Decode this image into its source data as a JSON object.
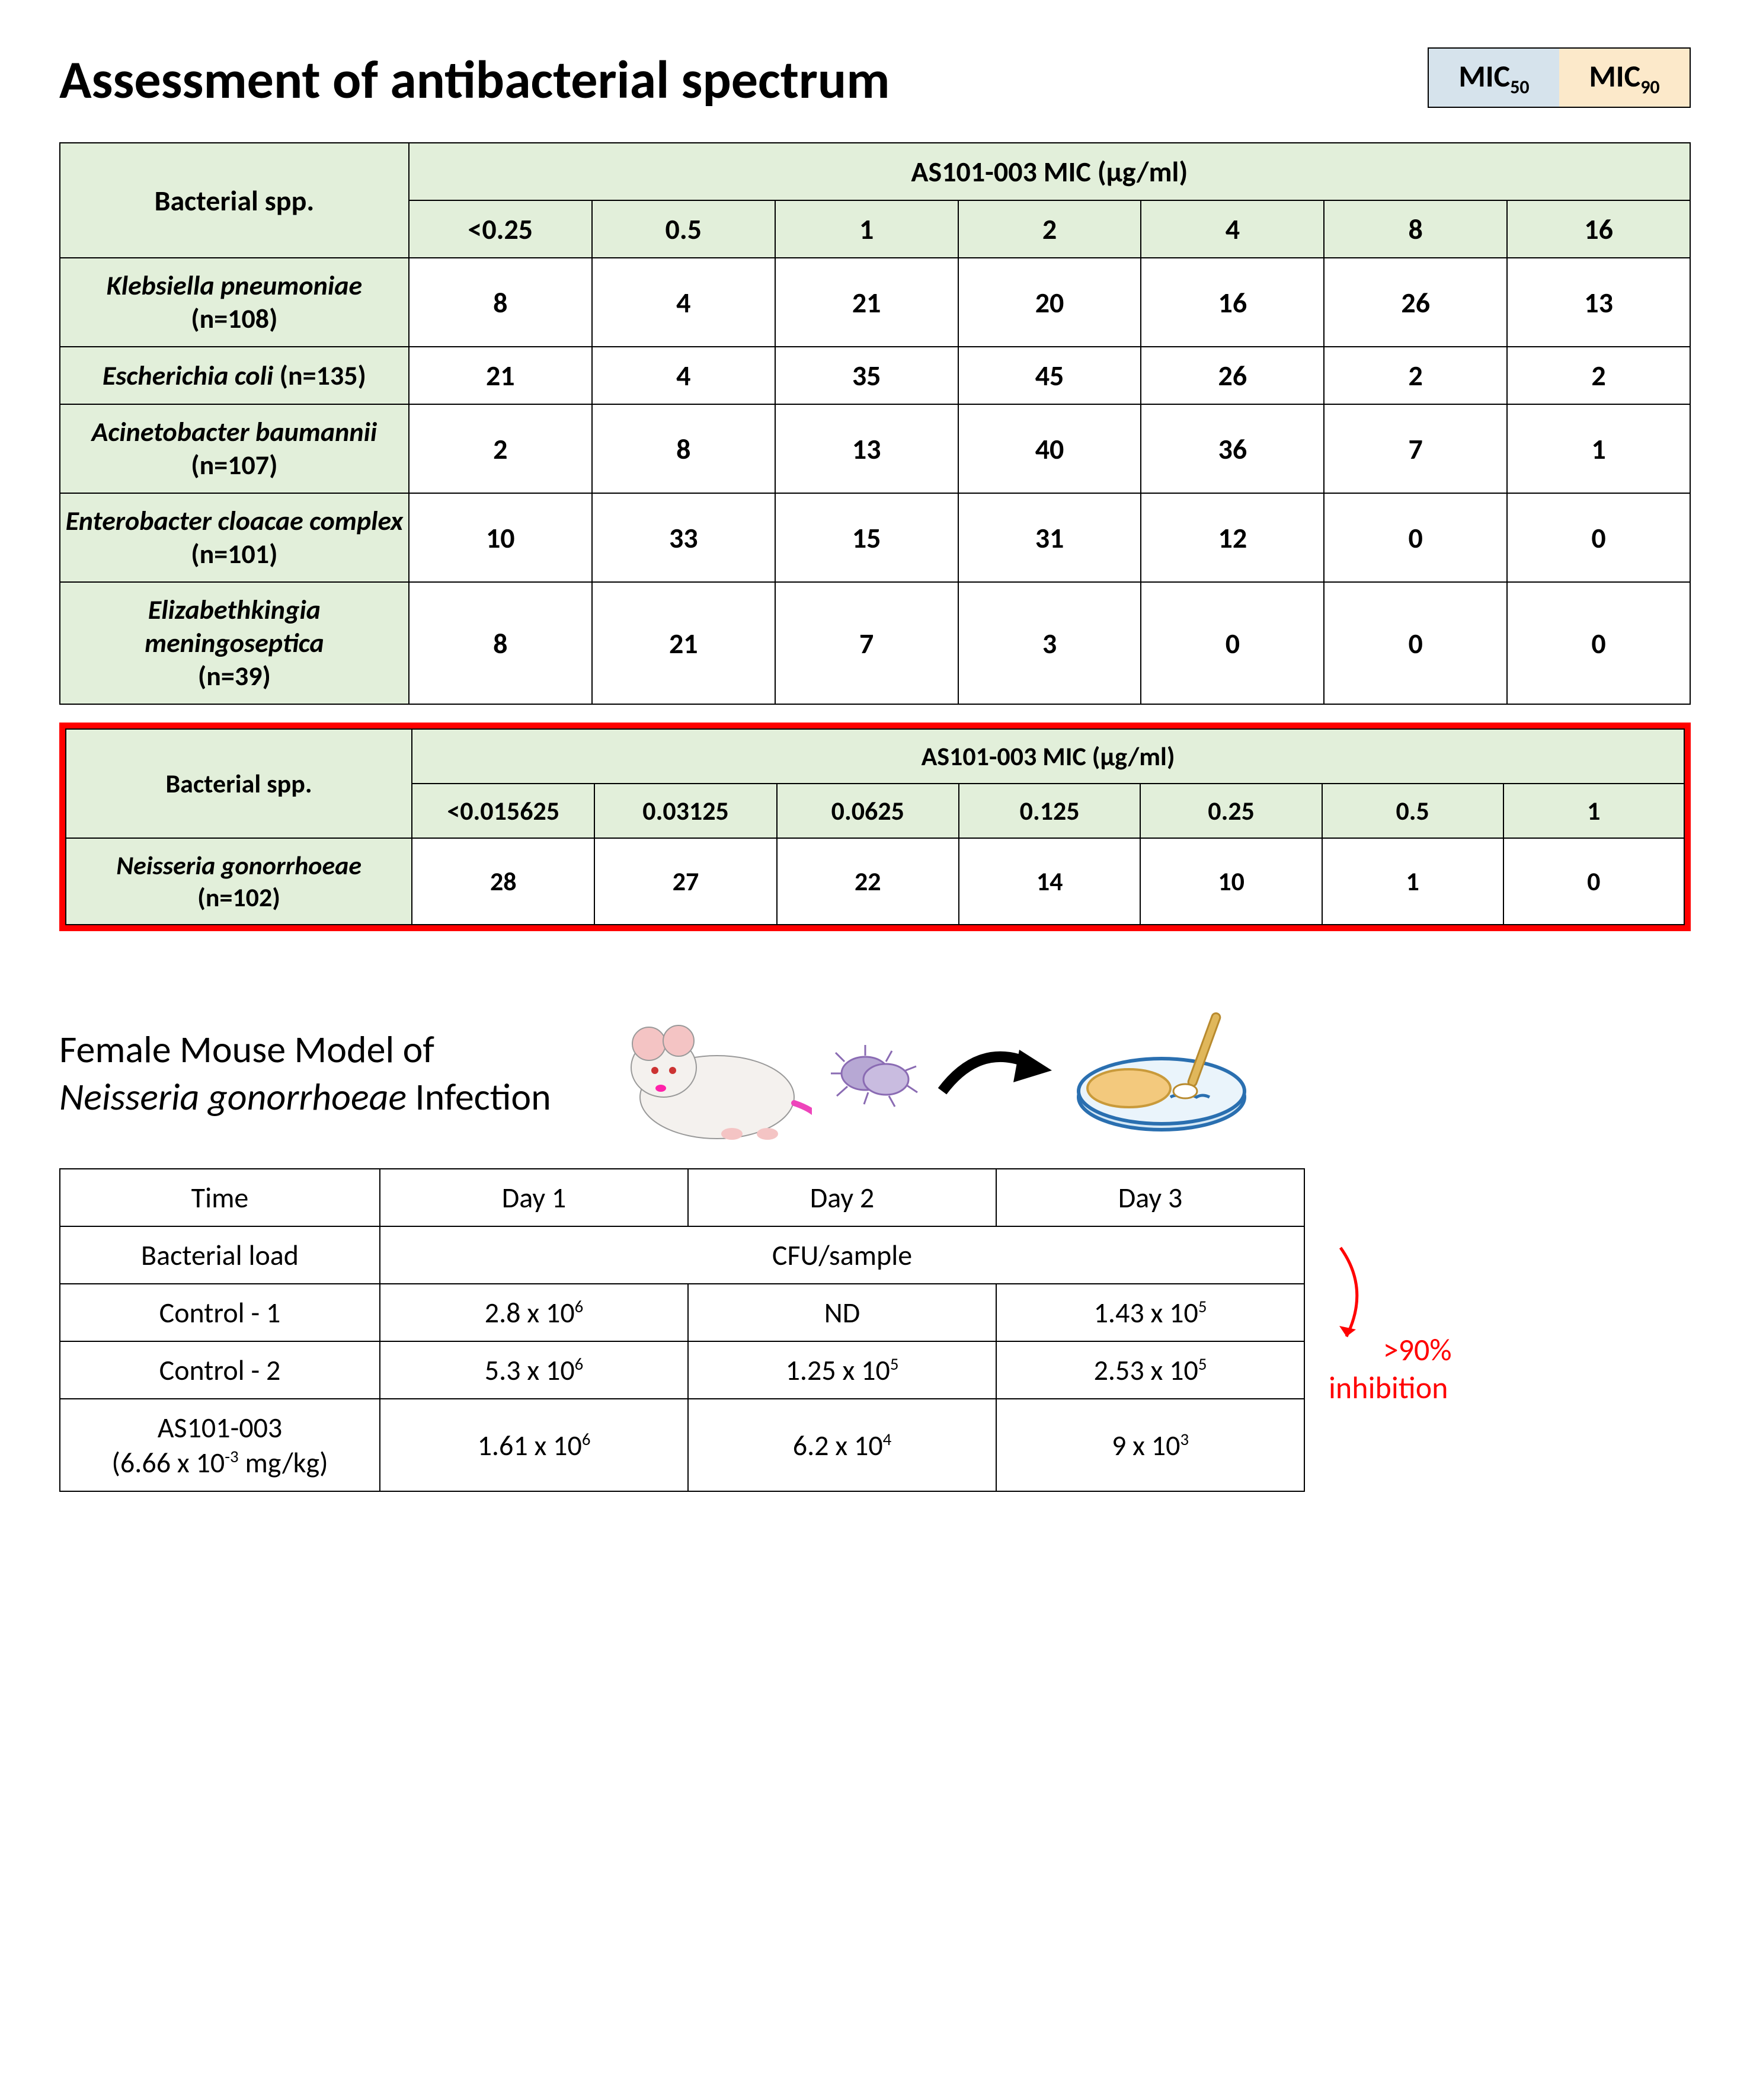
{
  "title": "Assessment of antibacterial spectrum",
  "legend": {
    "mic50": "MIC",
    "mic50_sub": "50",
    "mic90": "MIC",
    "mic90_sub": "90"
  },
  "colors": {
    "header_bg": "#e2efda",
    "mic50_bg": "#d6e3ec",
    "mic90_bg": "#fce9ca",
    "other_highlight_bg": "#e3d6ea",
    "red": "#ff0000",
    "border": "#000000",
    "mouse_fill": "#f4f1ee",
    "bacteria_fill": "#b7a8d4",
    "petri_fill": "#d6e9f6",
    "petri_disk": "#f3c97d",
    "swab_stick": "#e0b75b"
  },
  "table1": {
    "spp_header": "Bacterial spp.",
    "mic_header": "AS101-003 MIC (μg/ml)",
    "mic_cols": [
      "<0.25",
      "0.5",
      "1",
      "2",
      "4",
      "8",
      "16"
    ],
    "rows": [
      {
        "name": "Klebsiella pneumoniae",
        "n": "(n=108)",
        "vals": [
          "8",
          "4",
          "21",
          "20",
          "16",
          "26",
          "13"
        ],
        "hl": {
          "4": "mic50",
          "6": "mic90"
        }
      },
      {
        "name": "Escherichia coli",
        "n": "(n=135)",
        "vals": [
          "21",
          "4",
          "35",
          "45",
          "26",
          "2",
          "2"
        ],
        "hl": {
          "3": "mic50",
          "4": "mic90"
        }
      },
      {
        "name": "Acinetobacter baumannii",
        "n": "(n=107)",
        "vals": [
          "2",
          "8",
          "13",
          "40",
          "36",
          "7",
          "1"
        ],
        "hl": {
          "3": "mic50",
          "4": "mic90"
        }
      },
      {
        "name": "Enterobacter cloacae complex",
        "n": "(n=101)",
        "vals": [
          "10",
          "33",
          "15",
          "31",
          "12",
          "0",
          "0"
        ],
        "hl": {
          "2": "mic50",
          "4": "mic90"
        }
      },
      {
        "name": "Elizabethkingia meningoseptica",
        "n": "(n=39)",
        "vals": [
          "8",
          "21",
          "7",
          "3",
          "0",
          "0",
          "0"
        ],
        "hl": {
          "1": "mic50",
          "2": "mic90"
        }
      }
    ]
  },
  "table2": {
    "spp_header": "Bacterial spp.",
    "mic_header": "AS101-003 MIC (μg/ml)",
    "mic_cols": [
      "<0.015625",
      "0.03125",
      "0.0625",
      "0.125",
      "0.25",
      "0.5",
      "1"
    ],
    "row": {
      "name": "Neisseria gonorrhoeae",
      "n": "(n=102)",
      "vals": [
        "28",
        "27",
        "22",
        "14",
        "10",
        "1",
        "0"
      ],
      "hl": {
        "1": "mic50",
        "3": "other"
      }
    }
  },
  "mouse": {
    "title_line1": "Female Mouse Model of",
    "title_line2a": "Neisseria gonorrhoeae",
    "title_line2b": " Infection"
  },
  "cfu": {
    "headers": [
      "Time",
      "Day 1",
      "Day 2",
      "Day 3"
    ],
    "load_label": "Bacterial load",
    "load_unit": "CFU/sample",
    "rows": [
      {
        "label": "Control - 1",
        "d1_b": "2.8 x 10",
        "d1_e": "6",
        "d2_b": "ND",
        "d2_e": "",
        "d3_b": "1.43 x 10",
        "d3_e": "5"
      },
      {
        "label": "Control - 2",
        "d1_b": "5.3 x 10",
        "d1_e": "6",
        "d2_b": "1.25 x 10",
        "d2_e": "5",
        "d3_b": "2.53 x 10",
        "d3_e": "5"
      },
      {
        "label": "AS101-003",
        "sublabel_b": "(6.66 x 10",
        "sublabel_e": "-3",
        "sublabel_c": " mg/kg)",
        "d1_b": "1.61 x 10",
        "d1_e": "6",
        "d2_b": "6.2 x 10",
        "d2_e": "4",
        "d3_b": "9 x 10",
        "d3_e": "3"
      }
    ],
    "inhibition_a": ">90%",
    "inhibition_b": "inhibition"
  }
}
